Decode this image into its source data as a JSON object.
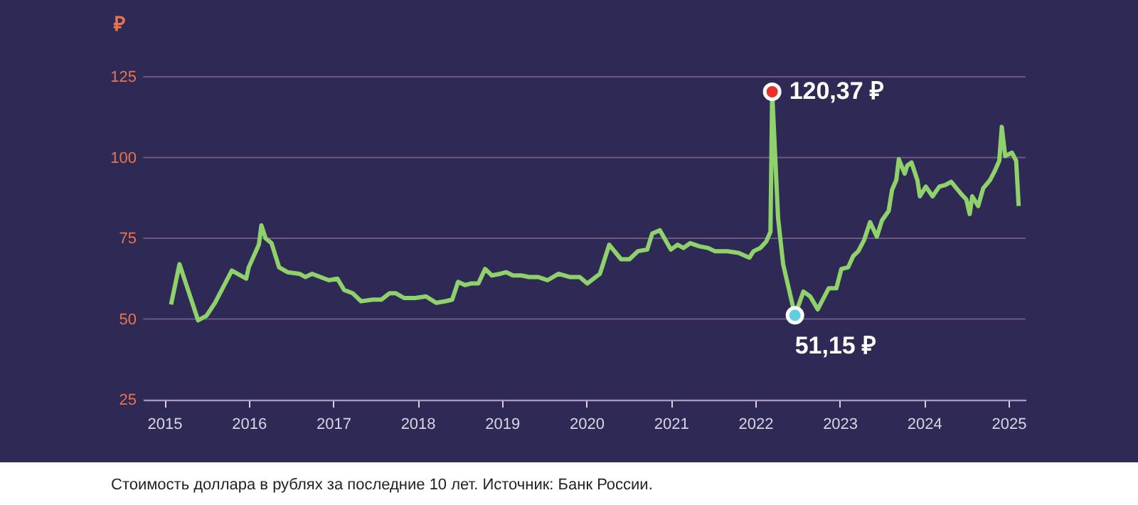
{
  "chart_data": {
    "type": "line",
    "ylabel": "₽",
    "x": [
      2015.08,
      2015.18,
      2015.4,
      2015.5,
      2015.6,
      2015.7,
      2015.8,
      2015.97,
      2016.0,
      2016.12,
      2016.15,
      2016.2,
      2016.27,
      2016.36,
      2016.46,
      2016.6,
      2016.67,
      2016.75,
      2016.85,
      2016.95,
      2017.05,
      2017.13,
      2017.23,
      2017.33,
      2017.47,
      2017.57,
      2017.67,
      2017.74,
      2017.84,
      2017.97,
      2018.1,
      2018.22,
      2018.33,
      2018.41,
      2018.48,
      2018.56,
      2018.63,
      2018.72,
      2018.8,
      2018.88,
      2018.98,
      2019.05,
      2019.13,
      2019.23,
      2019.32,
      2019.43,
      2019.54,
      2019.67,
      2019.8,
      2019.92,
      2020.01,
      2020.16,
      2020.27,
      2020.41,
      2020.51,
      2020.61,
      2020.72,
      2020.78,
      2020.87,
      2021.0,
      2021.08,
      2021.15,
      2021.23,
      2021.34,
      2021.44,
      2021.52,
      2021.67,
      2021.8,
      2021.93,
      2021.98,
      2022.06,
      2022.13,
      2022.18,
      2022.2,
      2022.27,
      2022.33,
      2022.47,
      2022.57,
      2022.65,
      2022.74,
      2022.82,
      2022.87,
      2022.96,
      2023.02,
      2023.1,
      2023.16,
      2023.22,
      2023.29,
      2023.36,
      2023.44,
      2023.5,
      2023.58,
      2023.62,
      2023.67,
      2023.7,
      2023.77,
      2023.8,
      2023.85,
      2023.92,
      2023.95,
      2024.02,
      2024.1,
      2024.18,
      2024.25,
      2024.32,
      2024.43,
      2024.5,
      2024.54,
      2024.57,
      2024.64,
      2024.7,
      2024.78,
      2024.84,
      2024.89,
      2024.92,
      2024.96,
      2025.04,
      2025.09,
      2025.12
    ],
    "series": [
      {
        "color": "#8fd16a",
        "values": [
          54.5,
          67,
          49.6,
          51,
          55,
          60,
          65,
          62.5,
          66,
          73,
          79,
          75,
          73.5,
          66,
          64.5,
          64,
          63,
          64,
          63,
          62,
          62.5,
          59,
          58,
          55.5,
          56,
          56,
          58,
          58,
          56.5,
          56.5,
          57,
          55,
          55.5,
          56,
          61.5,
          60.5,
          61,
          61,
          65.5,
          63.5,
          64,
          64.5,
          63.5,
          63.5,
          63,
          63,
          62,
          64,
          63,
          63,
          61,
          64,
          73,
          68.5,
          68.5,
          71,
          71.5,
          76.5,
          77.5,
          71.5,
          73,
          72,
          73.5,
          72.5,
          72,
          71,
          71,
          70.5,
          69,
          71,
          72,
          74,
          77,
          120.37,
          81.3,
          67,
          51.15,
          58.5,
          57,
          53,
          57,
          59.5,
          59.5,
          65.5,
          66,
          69.5,
          71,
          74.5,
          80,
          75.5,
          80.5,
          83.5,
          90,
          93,
          99.5,
          95,
          97.5,
          98.5,
          93,
          88,
          91,
          88,
          91,
          91.5,
          92.5,
          89,
          87,
          82.5,
          88,
          85,
          90.5,
          93,
          96,
          99,
          109.5,
          100.5,
          101.5,
          99,
          85
        ]
      },
      {
        "type": "scatter",
        "x": [
          2022.2,
          2022.47
        ],
        "values": [
          120.37,
          51.15
        ],
        "colors": [
          "#e8322a",
          "#5ecfe0"
        ],
        "marker": "circle"
      }
    ],
    "xlim": [
      2014.75,
      2025.2
    ],
    "xticks": [
      2015,
      2016,
      2017,
      2018,
      2019,
      2020,
      2021,
      2022,
      2023,
      2024,
      2025
    ],
    "ylim": [
      25,
      125
    ],
    "yticks": [
      25,
      50,
      75,
      100,
      125
    ],
    "grid": "y",
    "marker": "none",
    "line_style": "solid",
    "annotations": [
      {
        "text": "120,37 ₽",
        "x": 2022.2,
        "y": 120.37
      },
      {
        "text": "51,15 ₽",
        "x": 2022.47,
        "y": 51.15
      },
      "Стоимость доллара в рублях за последние 10 лет. Источник: Банк России."
    ]
  }
}
